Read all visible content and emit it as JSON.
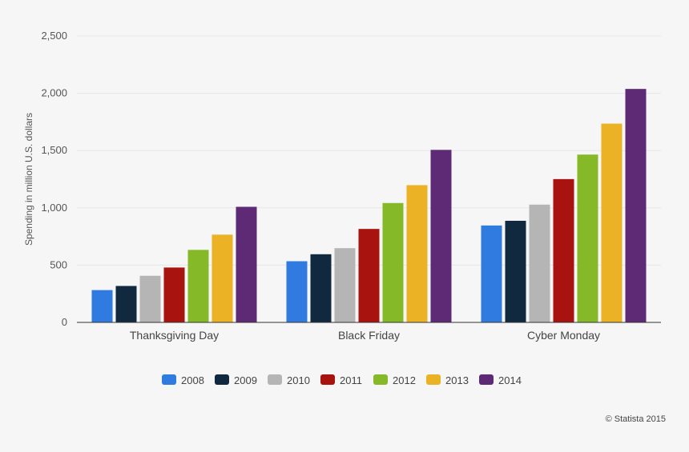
{
  "chart_data": {
    "type": "bar",
    "ylabel": "Spending in million U.S. dollars",
    "xlabel": "",
    "ylim": [
      0,
      2500
    ],
    "yticks": [
      0,
      500,
      1000,
      1500,
      2000,
      2500
    ],
    "ytick_labels": [
      "0",
      "500",
      "1,000",
      "1,500",
      "2,000",
      "2,500"
    ],
    "categories": [
      "Thanksgiving Day",
      "Black Friday",
      "Cyber Monday"
    ],
    "series": [
      {
        "name": "2008",
        "color": "#2f7be0",
        "values": [
          282,
          534,
          846
        ]
      },
      {
        "name": "2009",
        "color": "#10293f",
        "values": [
          318,
          595,
          887
        ]
      },
      {
        "name": "2010",
        "color": "#b5b5b5",
        "values": [
          407,
          648,
          1028
        ]
      },
      {
        "name": "2011",
        "color": "#a8120f",
        "values": [
          479,
          816,
          1251
        ]
      },
      {
        "name": "2012",
        "color": "#86b927",
        "values": [
          633,
          1042,
          1465
        ]
      },
      {
        "name": "2013",
        "color": "#ebb225",
        "values": [
          766,
          1198,
          1735
        ]
      },
      {
        "name": "2014",
        "color": "#5e2a76",
        "values": [
          1009,
          1506,
          2038
        ]
      }
    ],
    "grid": true,
    "legend_position": "bottom-center"
  },
  "credit": "© Statista 2015"
}
